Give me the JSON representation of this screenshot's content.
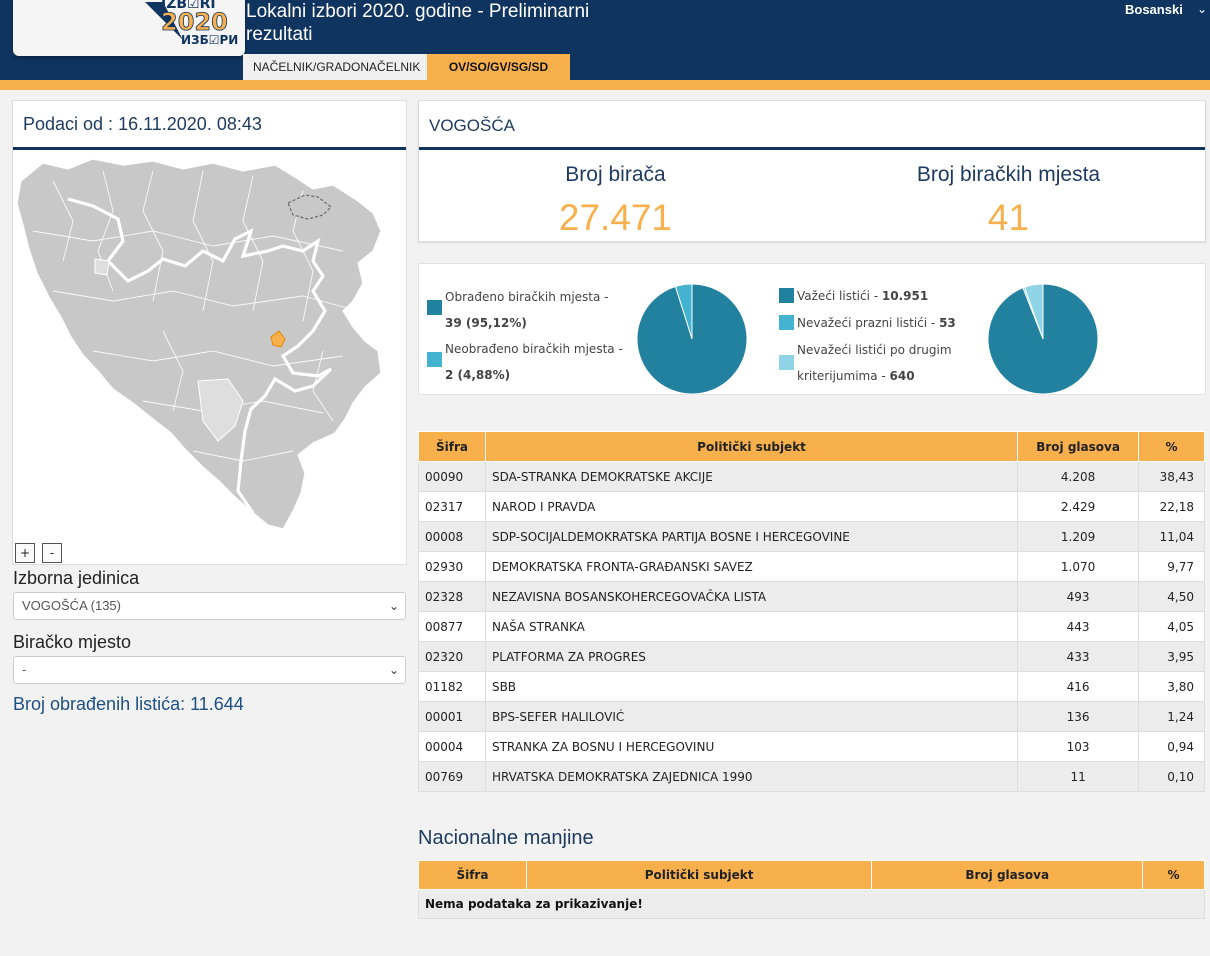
{
  "header": {
    "title_line1": "Lokalni izbori 2020. godine - Preliminarni",
    "title_line2": "rezultati",
    "language": "Bosanski",
    "logo": {
      "top": "IZB☑RI",
      "year": "2020",
      "bottom": "ИЗБ☑РИ"
    },
    "tabs": [
      {
        "label": "NAČELNIK/GRADONAČELNIK"
      },
      {
        "label": "OV/SO/GV/SG/SD"
      }
    ]
  },
  "left": {
    "data_date": "Podaci od : 16.11.2020. 08:43",
    "zoom_in": "+",
    "zoom_out": "-",
    "unit_label": "Izborna jedinica",
    "unit_value": "VOGOŠĆA (135)",
    "station_label": "Biračko mjesto",
    "station_value": "-",
    "processed_label": "Broj obrađenih listića: 11.644"
  },
  "summary": {
    "municipality": "VOGOŠĆA",
    "voters_label": "Broj birača",
    "voters_value": "27.471",
    "stations_label": "Broj biračkih mjesta",
    "stations_value": "41"
  },
  "pie1": {
    "colors": [
      "#21819e",
      "#43b3d0"
    ],
    "values": [
      39,
      2
    ],
    "legend": [
      {
        "text": "Obrađeno biračkih mjesta - ",
        "bold": "39 (95,12%)"
      },
      {
        "text": "Neobrađeno biračkih mjesta - ",
        "bold": "2 (4,88%)"
      }
    ]
  },
  "pie2": {
    "colors": [
      "#21819e",
      "#43b3d0",
      "#8fd4e6"
    ],
    "values": [
      10951,
      53,
      640
    ],
    "legend": [
      {
        "text": "Važeći listići - ",
        "bold": "10.951"
      },
      {
        "text": "Nevažeći prazni listići - ",
        "bold": "53"
      },
      {
        "text": "Nevažeći listići po drugim kriterijumima - ",
        "bold": "640"
      }
    ]
  },
  "results": {
    "headers": [
      "Šifra",
      "Politički subjekt",
      "Broj glasova",
      "%"
    ],
    "rows": [
      {
        "code": "00090",
        "party": "SDA-STRANKA DEMOKRATSKE AKCIJE",
        "votes": "4.208",
        "pct": "38,43"
      },
      {
        "code": "02317",
        "party": "NAROD I PRAVDA",
        "votes": "2.429",
        "pct": "22,18"
      },
      {
        "code": "00008",
        "party": "SDP-SOCIJALDEMOKRATSKA PARTIJA BOSNE I HERCEGOVINE",
        "votes": "1.209",
        "pct": "11,04"
      },
      {
        "code": "02930",
        "party": "DEMOKRATSKA FRONTA-GRAĐANSKI SAVEZ",
        "votes": "1.070",
        "pct": "9,77"
      },
      {
        "code": "02328",
        "party": "NEZAVISNA BOSANSKOHERCEGOVAČKA LISTA",
        "votes": "493",
        "pct": "4,50"
      },
      {
        "code": "00877",
        "party": "NAŠA STRANKA",
        "votes": "443",
        "pct": "4,05"
      },
      {
        "code": "02320",
        "party": "PLATFORMA ZA PROGRES",
        "votes": "433",
        "pct": "3,95"
      },
      {
        "code": "01182",
        "party": "SBB",
        "votes": "416",
        "pct": "3,80"
      },
      {
        "code": "00001",
        "party": "BPS-SEFER HALILOVIĆ",
        "votes": "136",
        "pct": "1,24"
      },
      {
        "code": "00004",
        "party": "STRANKA ZA BOSNU I HERCEGOVINU",
        "votes": "103",
        "pct": "0,94"
      },
      {
        "code": "00769",
        "party": "HRVATSKA DEMOKRATSKA ZAJEDNICA 1990",
        "votes": "11",
        "pct": "0,10"
      }
    ]
  },
  "minorities": {
    "title": "Nacionalne manjine",
    "headers": [
      "Šifra",
      "Politički subjekt",
      "Broj glasova",
      "%"
    ],
    "empty_message": "Nema podataka za prikazivanje!"
  },
  "colors": {
    "navy": "#0f3460",
    "accent": "#f7b04c",
    "map_fill": "#c8c8c8",
    "map_selected": "#f7b04c"
  }
}
